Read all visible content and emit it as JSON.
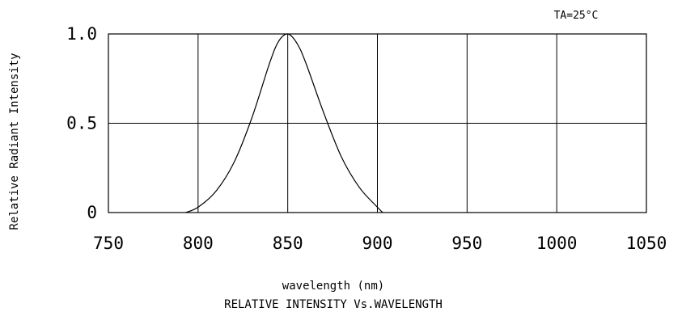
{
  "chart_data": {
    "type": "line",
    "title": "RELATIVE INTENSITY Vs.WAVELENGTH",
    "condition": "TA=25°C",
    "xlabel": "wavelength (nm)",
    "ylabel": "Relative Radiant Intensity",
    "xlim": [
      750,
      1050
    ],
    "ylim": [
      0,
      1.0
    ],
    "x_ticks": [
      "750",
      "800",
      "850",
      "900",
      "950",
      "1000",
      "1050"
    ],
    "x_tick_values": [
      750,
      800,
      850,
      900,
      950,
      1000,
      1050
    ],
    "y_ticks": [
      "0",
      "0.5",
      "1.0"
    ],
    "y_tick_values": [
      0,
      0.5,
      1.0
    ],
    "grid": true,
    "series": [
      {
        "x": [
          793,
          800,
          810,
          820,
          830,
          840,
          845,
          850,
          855,
          860,
          870,
          880,
          890,
          900,
          903
        ],
        "y": [
          0.0,
          0.03,
          0.12,
          0.28,
          0.53,
          0.84,
          0.96,
          1.0,
          0.95,
          0.84,
          0.56,
          0.31,
          0.14,
          0.03,
          0.0
        ]
      }
    ]
  }
}
